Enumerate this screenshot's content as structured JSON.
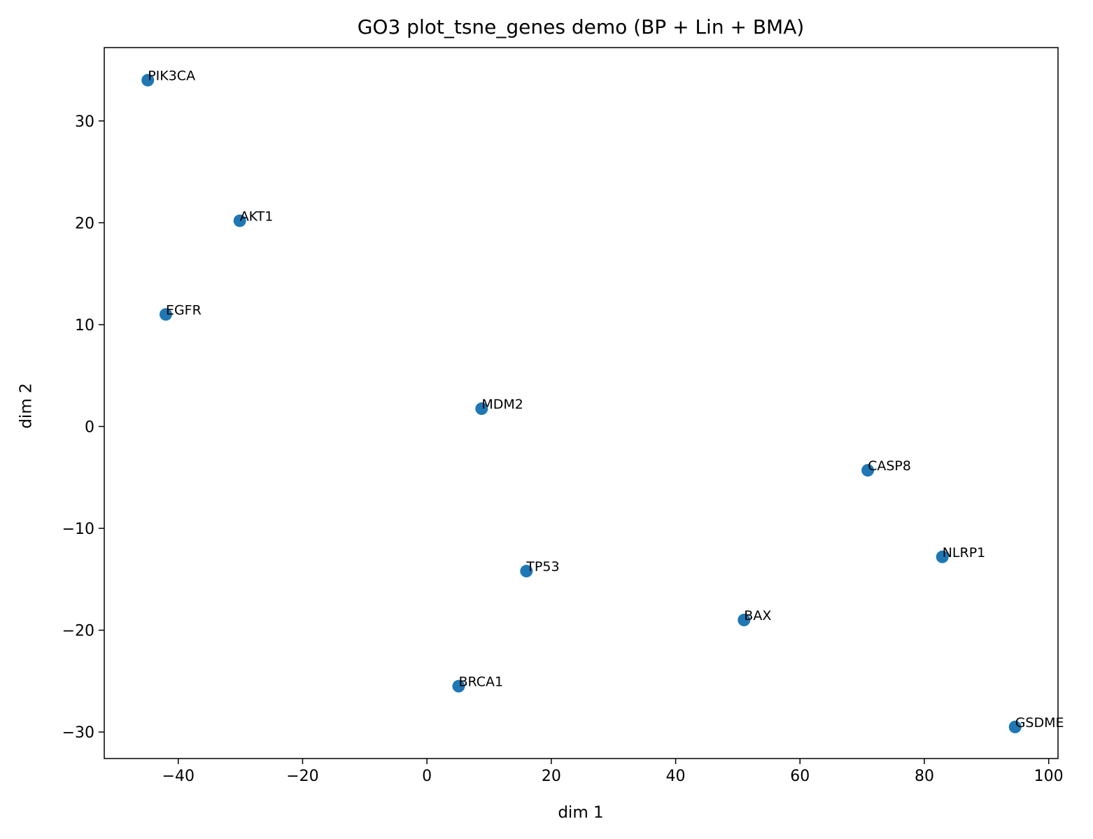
{
  "chart_data": {
    "type": "scatter",
    "title": "GO3 plot_tsne_genes demo (BP + Lin + BMA)",
    "x_label": "dim 1",
    "y_label": "dim 2",
    "color": "#1f77b4",
    "labels": [
      "PIK3CA",
      "AKT1",
      "EGFR",
      "MDM2",
      "CASP8",
      "NLRP1",
      "TP53",
      "BAX",
      "BRCA1",
      "GSDME"
    ],
    "x": [
      -44.9,
      -30.1,
      -42.0,
      8.8,
      70.9,
      82.9,
      16.0,
      51.0,
      5.1,
      94.6
    ],
    "y": [
      34.0,
      20.2,
      11.0,
      1.75,
      -4.3,
      -12.8,
      -14.2,
      -19.0,
      -25.5,
      -29.5
    ],
    "xlim": [
      -51.9,
      101.5
    ],
    "ylim": [
      -32.6,
      37.2
    ],
    "xticks": [
      {
        "value": -40,
        "label": "−40"
      },
      {
        "value": -20,
        "label": "−20"
      },
      0,
      20,
      40,
      60,
      80,
      100
    ],
    "yticks": [
      {
        "value": -30,
        "label": "−30"
      },
      {
        "value": -20,
        "label": "−20"
      },
      {
        "value": -10,
        "label": "−10"
      },
      0,
      10,
      20,
      30
    ],
    "grid": false
  }
}
